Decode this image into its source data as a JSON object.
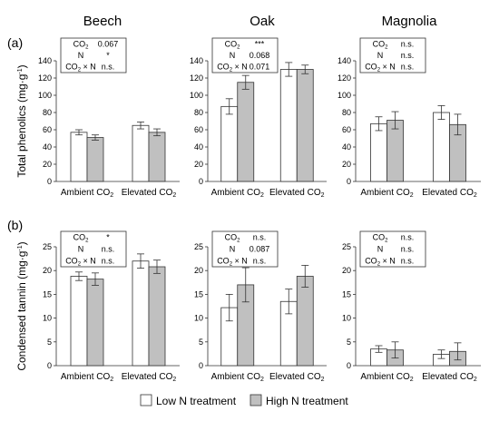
{
  "panel_labels": [
    "(a)",
    "(b)"
  ],
  "columns": [
    "Beech",
    "Oak",
    "Magnolia"
  ],
  "legend": {
    "low": "Low N treatment",
    "high": "High N treatment"
  },
  "colors": {
    "low": "#ffffff",
    "high": "#c0c0c0",
    "stroke": "#333333"
  },
  "stat_labels": [
    "CO2",
    "N",
    "CO2 × N"
  ],
  "chart_data": [
    {
      "type": "bar",
      "row": 0,
      "col": 0,
      "title": "Beech",
      "ylabel": "Total phenolics (mg·g-1)",
      "ylim": [
        0,
        140
      ],
      "yticks": [
        "0",
        "20",
        "40",
        "60",
        "80",
        "100",
        "120",
        "140"
      ],
      "categories": [
        "Ambient CO2",
        "Elevated CO2"
      ],
      "series": [
        {
          "name": "Low N treatment",
          "values": [
            57,
            65
          ],
          "errors": [
            3,
            4
          ]
        },
        {
          "name": "High N treatment",
          "values": [
            51,
            57
          ],
          "errors": [
            3,
            4
          ]
        }
      ],
      "stats": [
        "0.067",
        "*",
        "n.s."
      ]
    },
    {
      "type": "bar",
      "row": 0,
      "col": 1,
      "title": "Oak",
      "ylabel": "",
      "ylim": [
        0,
        140
      ],
      "yticks": [
        "0",
        "20",
        "40",
        "60",
        "80",
        "100",
        "120",
        "140"
      ],
      "categories": [
        "Ambient CO2",
        "Elevated CO2"
      ],
      "series": [
        {
          "name": "Low N treatment",
          "values": [
            87,
            130
          ],
          "errors": [
            9,
            8
          ]
        },
        {
          "name": "High N treatment",
          "values": [
            115,
            130
          ],
          "errors": [
            8,
            5
          ]
        }
      ],
      "stats": [
        "***",
        "0.068",
        "0.071"
      ]
    },
    {
      "type": "bar",
      "row": 0,
      "col": 2,
      "title": "Magnolia",
      "ylabel": "",
      "ylim": [
        0,
        140
      ],
      "yticks": [
        "0",
        "20",
        "40",
        "60",
        "80",
        "100",
        "120",
        "140"
      ],
      "categories": [
        "Ambient CO2",
        "Elevated CO2"
      ],
      "series": [
        {
          "name": "Low N treatment",
          "values": [
            67,
            80
          ],
          "errors": [
            8,
            8
          ]
        },
        {
          "name": "High N treatment",
          "values": [
            71,
            66
          ],
          "errors": [
            10,
            12
          ]
        }
      ],
      "stats": [
        "n.s.",
        "n.s.",
        "n.s."
      ]
    },
    {
      "type": "bar",
      "row": 1,
      "col": 0,
      "title": "",
      "ylabel": "Condensed tannin (mg·g-1)",
      "ylim": [
        0,
        25
      ],
      "yticks": [
        "0",
        "5",
        "10",
        "15",
        "20",
        "25"
      ],
      "categories": [
        "Ambient CO2",
        "Elevated CO2"
      ],
      "series": [
        {
          "name": "Low N treatment",
          "values": [
            18.8,
            22
          ],
          "errors": [
            0.9,
            1.5
          ]
        },
        {
          "name": "High N treatment",
          "values": [
            18.2,
            20.8
          ],
          "errors": [
            1.3,
            1.4
          ]
        }
      ],
      "stats": [
        "*",
        "n.s.",
        "n.s."
      ]
    },
    {
      "type": "bar",
      "row": 1,
      "col": 1,
      "title": "",
      "ylabel": "",
      "ylim": [
        0,
        25
      ],
      "yticks": [
        "0",
        "5",
        "10",
        "15",
        "20",
        "25"
      ],
      "categories": [
        "Ambient CO2",
        "Elevated CO2"
      ],
      "series": [
        {
          "name": "Low N treatment",
          "values": [
            12.2,
            13.5
          ],
          "errors": [
            2.8,
            2.6
          ]
        },
        {
          "name": "High N treatment",
          "values": [
            17,
            18.8
          ],
          "errors": [
            3.6,
            2.3
          ]
        }
      ],
      "stats": [
        "n.s.",
        "0.087",
        "n.s."
      ]
    },
    {
      "type": "bar",
      "row": 1,
      "col": 2,
      "title": "",
      "ylabel": "",
      "ylim": [
        0,
        25
      ],
      "yticks": [
        "0",
        "5",
        "10",
        "15",
        "20",
        "25"
      ],
      "categories": [
        "Ambient CO2",
        "Elevated CO2"
      ],
      "series": [
        {
          "name": "Low N treatment",
          "values": [
            3.5,
            2.4
          ],
          "errors": [
            0.7,
            0.9
          ]
        },
        {
          "name": "High N treatment",
          "values": [
            3.3,
            3.0
          ],
          "errors": [
            1.7,
            1.8
          ]
        }
      ],
      "stats": [
        "n.s.",
        "n.s.",
        "n.s."
      ]
    }
  ]
}
